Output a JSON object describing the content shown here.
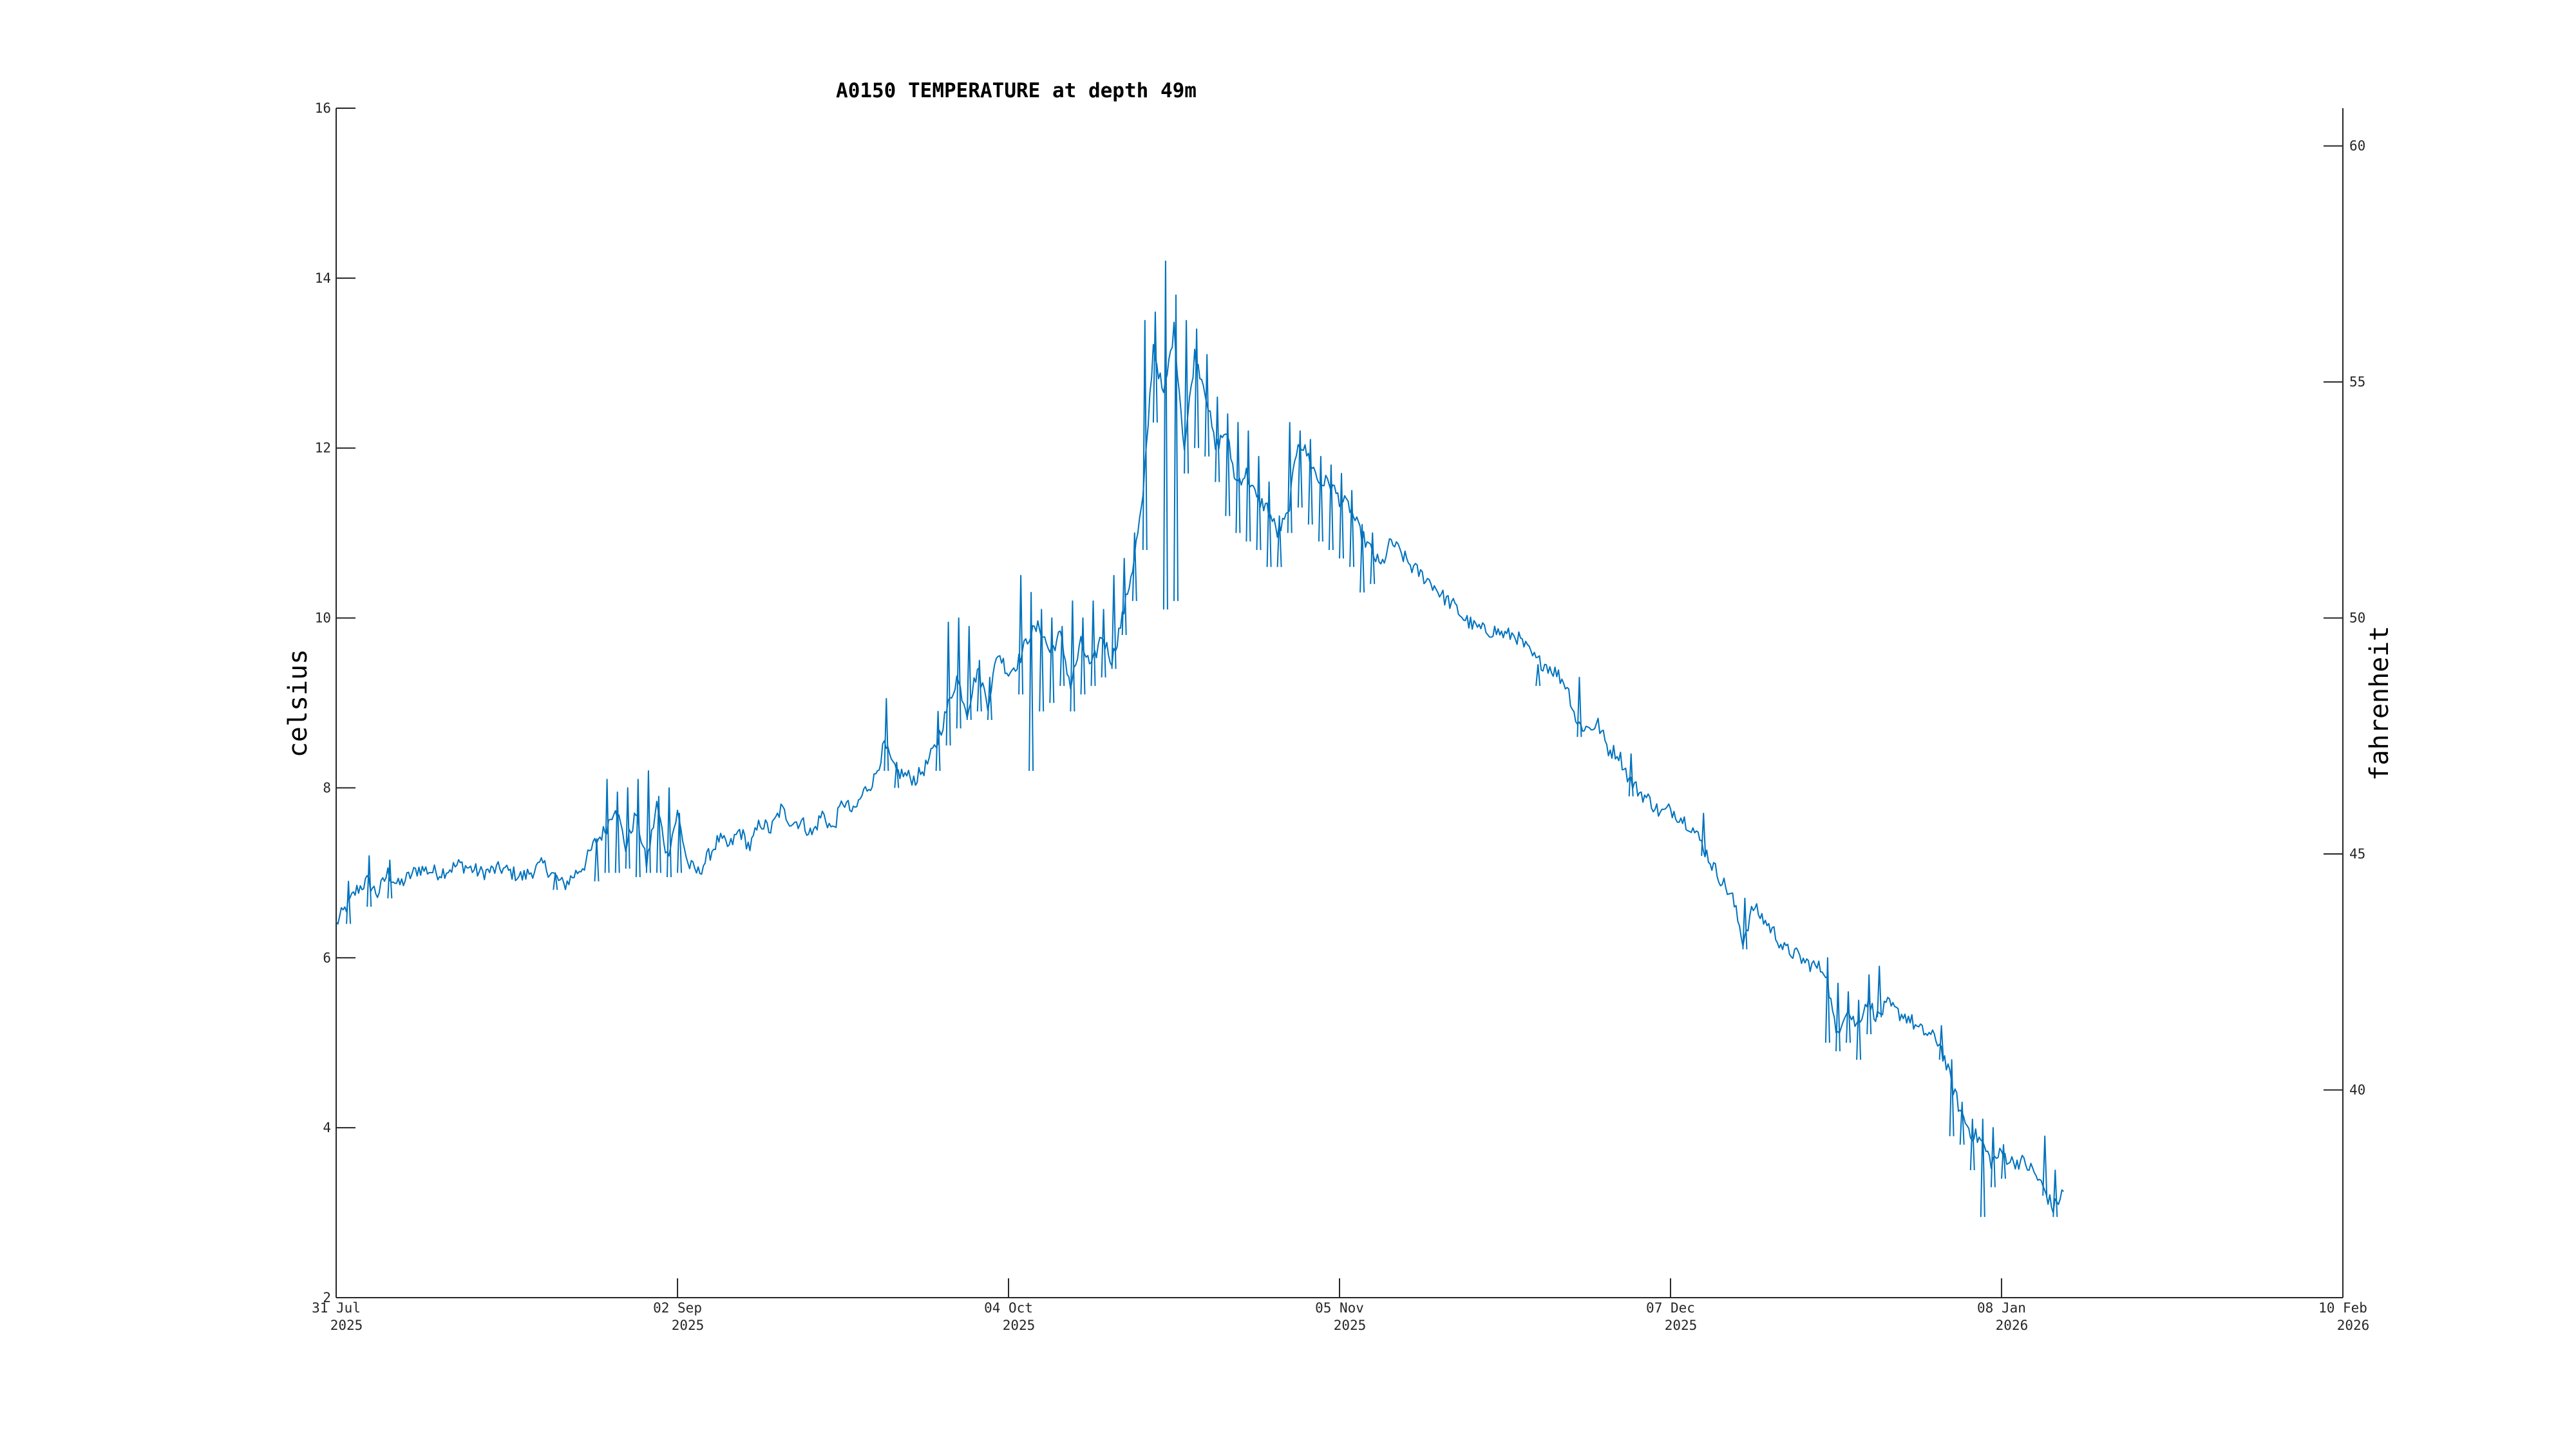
{
  "chart_data": {
    "type": "line",
    "title": "A0150 TEMPERATURE at depth 49m",
    "ylabel": "celsius",
    "ylabel_right": "fahrenheit",
    "xlim": [
      "2025-07-31",
      "2026-02-10"
    ],
    "ylim": [
      2,
      16
    ],
    "ylim_right_fahrenheit": [
      35.6,
      60.8
    ],
    "grid": false,
    "legend": "none",
    "line_color": "#0072BD",
    "x_ticks": [
      {
        "date": "2025-07-31",
        "label_line1": "31 Jul",
        "label_line2": "2025"
      },
      {
        "date": "2025-09-02",
        "label_line1": "02 Sep",
        "label_line2": "2025"
      },
      {
        "date": "2025-10-04",
        "label_line1": "04 Oct",
        "label_line2": "2025"
      },
      {
        "date": "2025-11-05",
        "label_line1": "05 Nov",
        "label_line2": "2025"
      },
      {
        "date": "2025-12-07",
        "label_line1": "07 Dec",
        "label_line2": "2025"
      },
      {
        "date": "2026-01-08",
        "label_line1": "08 Jan",
        "label_line2": "2026"
      },
      {
        "date": "2026-02-10",
        "label_line1": "10 Feb",
        "label_line2": "2026"
      }
    ],
    "y_ticks_left": [
      2,
      4,
      6,
      8,
      10,
      12,
      14,
      16
    ],
    "y_ticks_right": [
      40,
      45,
      50,
      55,
      60
    ],
    "series": [
      {
        "points": [
          [
            "2025-07-31",
            6.4
          ],
          [
            "2025-08-01",
            6.6
          ],
          [
            "2025-08-02",
            6.8
          ],
          [
            "2025-08-03",
            6.9
          ],
          [
            "2025-08-04",
            6.75
          ],
          [
            "2025-08-05",
            7.0
          ],
          [
            "2025-08-06",
            6.85
          ],
          [
            "2025-08-08",
            7.05
          ],
          [
            "2025-08-10",
            7.0
          ],
          [
            "2025-08-12",
            7.1
          ],
          [
            "2025-08-14",
            7.0
          ],
          [
            "2025-08-16",
            7.05
          ],
          [
            "2025-08-18",
            6.95
          ],
          [
            "2025-08-20",
            7.1
          ],
          [
            "2025-08-22",
            6.85
          ],
          [
            "2025-08-24",
            7.1
          ],
          [
            "2025-08-25",
            7.35
          ],
          [
            "2025-08-26",
            7.5
          ],
          [
            "2025-08-27",
            7.8
          ],
          [
            "2025-08-28",
            7.3
          ],
          [
            "2025-08-29",
            7.7
          ],
          [
            "2025-08-30",
            7.1
          ],
          [
            "2025-08-31",
            7.8
          ],
          [
            "2025-09-01",
            7.2
          ],
          [
            "2025-09-02",
            7.7
          ],
          [
            "2025-09-03",
            7.1
          ],
          [
            "2025-09-04",
            7.0
          ],
          [
            "2025-09-05",
            7.2
          ],
          [
            "2025-09-06",
            7.4
          ],
          [
            "2025-09-07",
            7.3
          ],
          [
            "2025-09-08",
            7.5
          ],
          [
            "2025-09-09",
            7.3
          ],
          [
            "2025-09-10",
            7.6
          ],
          [
            "2025-09-11",
            7.5
          ],
          [
            "2025-09-12",
            7.75
          ],
          [
            "2025-09-13",
            7.6
          ],
          [
            "2025-09-14",
            7.6
          ],
          [
            "2025-09-15",
            7.45
          ],
          [
            "2025-09-16",
            7.7
          ],
          [
            "2025-09-17",
            7.5
          ],
          [
            "2025-09-18",
            7.85
          ],
          [
            "2025-09-19",
            7.7
          ],
          [
            "2025-09-20",
            7.95
          ],
          [
            "2025-09-21",
            8.1
          ],
          [
            "2025-09-22",
            8.5
          ],
          [
            "2025-09-23",
            8.2
          ],
          [
            "2025-09-24",
            8.15
          ],
          [
            "2025-09-25",
            8.1
          ],
          [
            "2025-09-26",
            8.25
          ],
          [
            "2025-09-27",
            8.5
          ],
          [
            "2025-09-28",
            8.9
          ],
          [
            "2025-09-29",
            9.3
          ],
          [
            "2025-09-30",
            8.9
          ],
          [
            "2025-10-01",
            9.4
          ],
          [
            "2025-10-02",
            9.0
          ],
          [
            "2025-10-03",
            9.6
          ],
          [
            "2025-10-04",
            9.35
          ],
          [
            "2025-10-05",
            9.5
          ],
          [
            "2025-10-06",
            9.8
          ],
          [
            "2025-10-07",
            9.9
          ],
          [
            "2025-10-08",
            9.6
          ],
          [
            "2025-10-09",
            9.8
          ],
          [
            "2025-10-10",
            9.2
          ],
          [
            "2025-10-11",
            9.7
          ],
          [
            "2025-10-12",
            9.4
          ],
          [
            "2025-10-13",
            9.8
          ],
          [
            "2025-10-14",
            9.5
          ],
          [
            "2025-10-15",
            10.0
          ],
          [
            "2025-10-16",
            10.6
          ],
          [
            "2025-10-17",
            11.4
          ],
          [
            "2025-10-18",
            13.2
          ],
          [
            "2025-10-19",
            12.6
          ],
          [
            "2025-10-20",
            13.4
          ],
          [
            "2025-10-21",
            12.0
          ],
          [
            "2025-10-22",
            13.1
          ],
          [
            "2025-10-23",
            12.7
          ],
          [
            "2025-10-24",
            12.0
          ],
          [
            "2025-10-25",
            12.2
          ],
          [
            "2025-10-26",
            11.6
          ],
          [
            "2025-10-27",
            11.7
          ],
          [
            "2025-10-28",
            11.4
          ],
          [
            "2025-10-29",
            11.3
          ],
          [
            "2025-10-30",
            11.0
          ],
          [
            "2025-10-31",
            11.2
          ],
          [
            "2025-11-01",
            12.1
          ],
          [
            "2025-11-02",
            11.9
          ],
          [
            "2025-11-03",
            11.6
          ],
          [
            "2025-11-04",
            11.6
          ],
          [
            "2025-11-05",
            11.4
          ],
          [
            "2025-11-06",
            11.3
          ],
          [
            "2025-11-07",
            11.0
          ],
          [
            "2025-11-08",
            10.8
          ],
          [
            "2025-11-09",
            10.6
          ],
          [
            "2025-11-10",
            10.9
          ],
          [
            "2025-11-11",
            10.75
          ],
          [
            "2025-11-12",
            10.6
          ],
          [
            "2025-11-13",
            10.5
          ],
          [
            "2025-11-14",
            10.4
          ],
          [
            "2025-11-15",
            10.25
          ],
          [
            "2025-11-16",
            10.15
          ],
          [
            "2025-11-17",
            10.0
          ],
          [
            "2025-11-18",
            9.9
          ],
          [
            "2025-11-19",
            9.85
          ],
          [
            "2025-11-20",
            9.85
          ],
          [
            "2025-11-21",
            9.8
          ],
          [
            "2025-11-22",
            9.8
          ],
          [
            "2025-11-23",
            9.65
          ],
          [
            "2025-11-24",
            9.5
          ],
          [
            "2025-11-25",
            9.45
          ],
          [
            "2025-11-26",
            9.35
          ],
          [
            "2025-11-27",
            9.2
          ],
          [
            "2025-11-28",
            8.75
          ],
          [
            "2025-11-29",
            8.7
          ],
          [
            "2025-11-30",
            8.75
          ],
          [
            "2025-12-01",
            8.45
          ],
          [
            "2025-12-02",
            8.4
          ],
          [
            "2025-12-03",
            8.1
          ],
          [
            "2025-12-04",
            7.95
          ],
          [
            "2025-12-05",
            7.85
          ],
          [
            "2025-12-06",
            7.7
          ],
          [
            "2025-12-07",
            7.75
          ],
          [
            "2025-12-08",
            7.65
          ],
          [
            "2025-12-09",
            7.55
          ],
          [
            "2025-12-10",
            7.35
          ],
          [
            "2025-12-11",
            7.1
          ],
          [
            "2025-12-12",
            6.9
          ],
          [
            "2025-12-13",
            6.7
          ],
          [
            "2025-12-14",
            6.2
          ],
          [
            "2025-12-15",
            6.6
          ],
          [
            "2025-12-16",
            6.45
          ],
          [
            "2025-12-17",
            6.3
          ],
          [
            "2025-12-18",
            6.1
          ],
          [
            "2025-12-19",
            6.05
          ],
          [
            "2025-12-20",
            5.95
          ],
          [
            "2025-12-21",
            5.9
          ],
          [
            "2025-12-22",
            5.85
          ],
          [
            "2025-12-23",
            5.1
          ],
          [
            "2025-12-24",
            5.4
          ],
          [
            "2025-12-25",
            5.2
          ],
          [
            "2025-12-26",
            5.5
          ],
          [
            "2025-12-27",
            5.3
          ],
          [
            "2025-12-28",
            5.45
          ],
          [
            "2025-12-29",
            5.35
          ],
          [
            "2025-12-30",
            5.3
          ],
          [
            "2025-12-31",
            5.15
          ],
          [
            "2026-01-01",
            5.1
          ],
          [
            "2026-01-02",
            5.0
          ],
          [
            "2026-01-03",
            4.6
          ],
          [
            "2026-01-04",
            4.2
          ],
          [
            "2026-01-05",
            3.95
          ],
          [
            "2026-01-06",
            3.85
          ],
          [
            "2026-01-07",
            3.6
          ],
          [
            "2026-01-08",
            3.7
          ],
          [
            "2026-01-09",
            3.6
          ],
          [
            "2026-01-10",
            3.6
          ],
          [
            "2026-01-11",
            3.5
          ],
          [
            "2026-01-12",
            3.3
          ],
          [
            "2026-01-13",
            3.05
          ],
          [
            "2026-01-14",
            3.25
          ]
        ],
        "spikes": [
          [
            "2025-08-01",
            6.4,
            6.9
          ],
          [
            "2025-08-03",
            6.6,
            7.2
          ],
          [
            "2025-08-05",
            6.7,
            7.15
          ],
          [
            "2025-08-21",
            6.8,
            7.0
          ],
          [
            "2025-08-25",
            6.9,
            7.4
          ],
          [
            "2025-08-26",
            7.0,
            8.1
          ],
          [
            "2025-08-27",
            7.0,
            7.95
          ],
          [
            "2025-08-28",
            7.05,
            8.0
          ],
          [
            "2025-08-29",
            6.95,
            8.1
          ],
          [
            "2025-08-30",
            7.0,
            8.2
          ],
          [
            "2025-08-31",
            7.0,
            7.9
          ],
          [
            "2025-09-01",
            6.95,
            8.0
          ],
          [
            "2025-09-02",
            7.0,
            7.7
          ],
          [
            "2025-09-22",
            8.2,
            9.05
          ],
          [
            "2025-09-23",
            8.0,
            8.3
          ],
          [
            "2025-09-27",
            8.2,
            8.9
          ],
          [
            "2025-09-28",
            8.5,
            9.95
          ],
          [
            "2025-09-29",
            8.7,
            10.0
          ],
          [
            "2025-09-30",
            8.8,
            9.9
          ],
          [
            "2025-10-01",
            8.9,
            9.5
          ],
          [
            "2025-10-02",
            8.8,
            9.3
          ],
          [
            "2025-10-05",
            9.1,
            10.5
          ],
          [
            "2025-10-06",
            8.2,
            10.3
          ],
          [
            "2025-10-07",
            8.9,
            10.1
          ],
          [
            "2025-10-08",
            9.0,
            10.0
          ],
          [
            "2025-10-09",
            9.2,
            9.9
          ],
          [
            "2025-10-10",
            8.9,
            10.2
          ],
          [
            "2025-10-11",
            9.1,
            10.0
          ],
          [
            "2025-10-12",
            9.2,
            10.2
          ],
          [
            "2025-10-13",
            9.3,
            10.1
          ],
          [
            "2025-10-14",
            9.4,
            10.5
          ],
          [
            "2025-10-15",
            9.8,
            10.7
          ],
          [
            "2025-10-16",
            10.2,
            11.0
          ],
          [
            "2025-10-17",
            10.8,
            13.5
          ],
          [
            "2025-10-18",
            12.3,
            13.6
          ],
          [
            "2025-10-19",
            10.1,
            14.2
          ],
          [
            "2025-10-20",
            10.2,
            13.8
          ],
          [
            "2025-10-21",
            11.7,
            13.5
          ],
          [
            "2025-10-22",
            12.0,
            13.4
          ],
          [
            "2025-10-23",
            11.9,
            13.1
          ],
          [
            "2025-10-24",
            11.6,
            12.6
          ],
          [
            "2025-10-25",
            11.2,
            12.4
          ],
          [
            "2025-10-26",
            11.0,
            12.3
          ],
          [
            "2025-10-27",
            10.9,
            12.2
          ],
          [
            "2025-10-28",
            10.8,
            11.9
          ],
          [
            "2025-10-29",
            10.6,
            11.6
          ],
          [
            "2025-10-30",
            10.6,
            11.2
          ],
          [
            "2025-10-31",
            11.0,
            12.3
          ],
          [
            "2025-11-01",
            11.3,
            12.2
          ],
          [
            "2025-11-02",
            11.1,
            12.1
          ],
          [
            "2025-11-03",
            10.9,
            11.9
          ],
          [
            "2025-11-04",
            10.8,
            11.8
          ],
          [
            "2025-11-05",
            10.7,
            11.7
          ],
          [
            "2025-11-06",
            10.6,
            11.5
          ],
          [
            "2025-11-07",
            10.3,
            11.1
          ],
          [
            "2025-11-08",
            10.4,
            11.0
          ],
          [
            "2025-11-24",
            9.2,
            9.45
          ],
          [
            "2025-11-28",
            8.6,
            9.3
          ],
          [
            "2025-12-03",
            7.9,
            8.4
          ],
          [
            "2025-12-10",
            7.2,
            7.7
          ],
          [
            "2025-12-14",
            6.1,
            6.7
          ],
          [
            "2025-12-22",
            5.0,
            6.0
          ],
          [
            "2025-12-23",
            4.9,
            5.7
          ],
          [
            "2025-12-24",
            5.0,
            5.6
          ],
          [
            "2025-12-25",
            4.8,
            5.5
          ],
          [
            "2025-12-26",
            5.1,
            5.8
          ],
          [
            "2025-12-27",
            5.3,
            5.9
          ],
          [
            "2026-01-02",
            4.8,
            5.2
          ],
          [
            "2026-01-03",
            3.9,
            4.8
          ],
          [
            "2026-01-04",
            3.8,
            4.3
          ],
          [
            "2026-01-05",
            3.5,
            4.1
          ],
          [
            "2026-01-06",
            2.95,
            4.1
          ],
          [
            "2026-01-07",
            3.3,
            4.0
          ],
          [
            "2026-01-08",
            3.4,
            3.8
          ],
          [
            "2026-01-12",
            3.2,
            3.9
          ],
          [
            "2026-01-13",
            2.95,
            3.5
          ]
        ]
      }
    ]
  }
}
